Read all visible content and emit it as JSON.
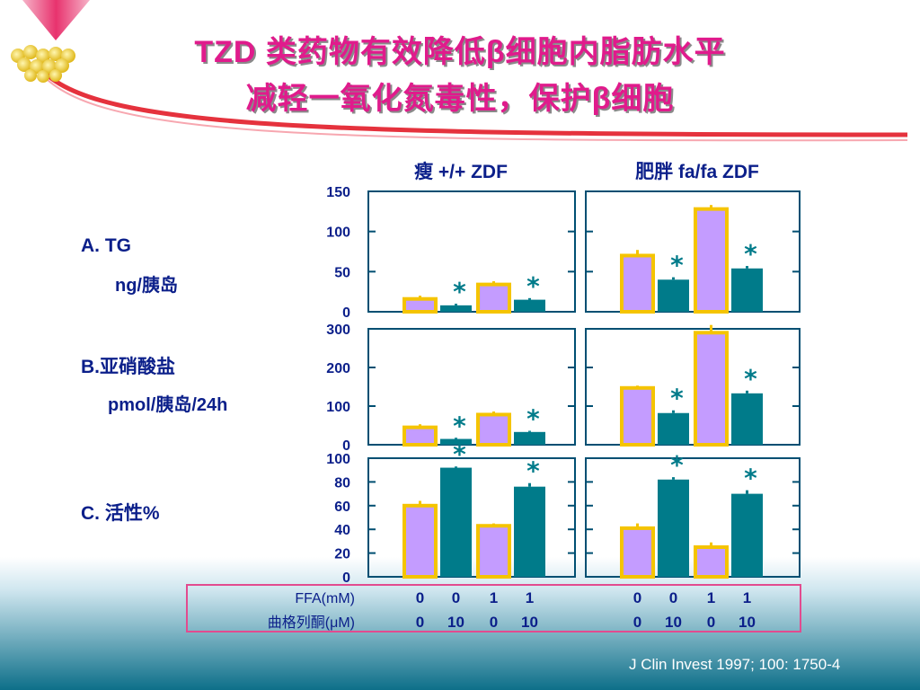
{
  "title": {
    "line1": "TZD 类药物有效降低β细胞内脂肪水平",
    "line2": "减轻一氧化氮毒性，保护β细胞"
  },
  "colors": {
    "title": "#e01b8c",
    "lavender_bar": "#c49cff",
    "lavender_border": "#f5c400",
    "teal_bar": "#007b8a",
    "axis": "#004f72",
    "table_border": "#e24b8f"
  },
  "chart_data": {
    "type": "bar",
    "groups": [
      "瘦 +/+ ZDF",
      "肥胖 fa/fa ZDF"
    ],
    "conditions": [
      {
        "ffa": "0",
        "troglitazone": "0"
      },
      {
        "ffa": "0",
        "troglitazone": "10"
      },
      {
        "ffa": "1",
        "troglitazone": "0"
      },
      {
        "ffa": "1",
        "troglitazone": "10"
      }
    ],
    "panels": [
      {
        "label": "A. TG",
        "unit": "ng/胰岛",
        "ylim": [
          0,
          150
        ],
        "ticks": [
          "150",
          "100",
          "50",
          "0"
        ],
        "values": [
          [
            16,
            8,
            34,
            15
          ],
          [
            70,
            40,
            128,
            54
          ]
        ],
        "errors": [
          [
            4,
            2,
            4,
            2
          ],
          [
            7,
            3,
            5,
            3
          ]
        ],
        "significant": [
          [
            false,
            true,
            false,
            true
          ],
          [
            false,
            true,
            false,
            true
          ]
        ]
      },
      {
        "label": "B.亚硝酸盐",
        "unit": "pmol/胰岛/24h",
        "ylim": [
          0,
          300
        ],
        "ticks": [
          "300",
          "200",
          "100",
          "0"
        ],
        "values": [
          [
            45,
            15,
            78,
            33
          ],
          [
            147,
            82,
            290,
            133
          ]
        ],
        "errors": [
          [
            8,
            3,
            8,
            3
          ],
          [
            6,
            7,
            20,
            7
          ]
        ],
        "significant": [
          [
            false,
            true,
            false,
            true
          ],
          [
            false,
            true,
            false,
            true
          ]
        ]
      },
      {
        "label": "C. 活性%",
        "unit": "",
        "ylim": [
          0,
          100
        ],
        "ticks": [
          "100",
          "80",
          "60",
          "40",
          "20",
          "0"
        ],
        "values": [
          [
            60,
            92,
            43,
            76
          ],
          [
            41,
            82,
            25,
            70
          ]
        ],
        "errors": [
          [
            4,
            1,
            2,
            3
          ],
          [
            4,
            2,
            4,
            3
          ]
        ],
        "significant": [
          [
            false,
            true,
            false,
            true
          ],
          [
            false,
            true,
            false,
            true
          ]
        ]
      }
    ],
    "row_labels": [
      "FFA(mM)",
      "曲格列酮(μM)"
    ]
  },
  "significance_mark": "*",
  "citation": "J Clin Invest 1997; 100: 1750-4"
}
